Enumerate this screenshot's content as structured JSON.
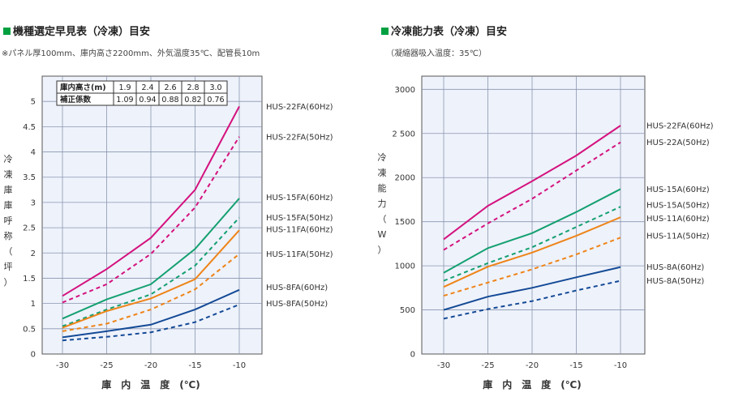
{
  "left": {
    "title": "機種選定早見表（冷凍）目安",
    "subtitle": "※パネル厚100mm、庫内高さ2200mm、外気温度35℃、配管長10m",
    "ylabel_chars": [
      "冷",
      "凍",
      "庫",
      "庫",
      "呼",
      "称",
      "（",
      "坪",
      "）"
    ],
    "xlabel": "庫　内　温　度　(℃)",
    "table": {
      "row1": {
        "head": "庫内高さ(m)",
        "values": [
          "1.9",
          "2.4",
          "2.6",
          "2.8",
          "3.0"
        ]
      },
      "row2": {
        "head": "補正係数",
        "values": [
          "1.09",
          "0.94",
          "0.88",
          "0.82",
          "0.76"
        ]
      }
    },
    "chart_data": {
      "type": "line",
      "x": [
        -30,
        -25,
        -20,
        -15,
        -10
      ],
      "xticks": [
        "-30",
        "-25",
        "-20",
        "-15",
        "-10"
      ],
      "ylim": [
        0,
        5.5
      ],
      "yticks": [
        "0",
        "0.5",
        "1",
        "1.5",
        "2",
        "2.5",
        "3",
        "3.5",
        "4",
        "4.5",
        "5"
      ],
      "grid": true,
      "series": [
        {
          "name": "HUS-22FA(60Hz)",
          "values": [
            1.15,
            1.68,
            2.3,
            3.25,
            4.9
          ],
          "color": "#d4127e",
          "dashed": false
        },
        {
          "name": "HUS-22FA(50Hz)",
          "values": [
            1.02,
            1.38,
            1.98,
            2.9,
            4.3
          ],
          "color": "#d4127e",
          "dashed": true
        },
        {
          "name": "HUS-15FA(60Hz)",
          "values": [
            0.7,
            1.08,
            1.38,
            2.08,
            3.08
          ],
          "color": "#14a070",
          "dashed": false
        },
        {
          "name": "HUS-15FA(50Hz)",
          "values": [
            0.55,
            0.88,
            1.18,
            1.75,
            2.7
          ],
          "color": "#14a070",
          "dashed": true
        },
        {
          "name": "HUS-11FA(60Hz)",
          "values": [
            0.52,
            0.85,
            1.1,
            1.48,
            2.45
          ],
          "color": "#ee8418",
          "dashed": false
        },
        {
          "name": "HUS-11FA(50Hz)",
          "values": [
            0.45,
            0.6,
            0.88,
            1.28,
            1.98
          ],
          "color": "#ee8418",
          "dashed": true
        },
        {
          "name": "HUS-8FA(60Hz)",
          "values": [
            0.33,
            0.45,
            0.58,
            0.88,
            1.27
          ],
          "color": "#144a96",
          "dashed": false
        },
        {
          "name": "HUS-8FA(50Hz)",
          "values": [
            0.27,
            0.34,
            0.43,
            0.63,
            0.98
          ],
          "color": "#144a96",
          "dashed": true
        }
      ],
      "legend": [
        {
          "text": "HUS-22FA(60Hz)",
          "v": 4.9
        },
        {
          "text": "HUS-22FA(50Hz)",
          "v": 4.3
        },
        {
          "text": "HUS-15FA(60Hz)",
          "v": 3.1
        },
        {
          "text": "HUS-15FA(50Hz)",
          "v": 2.7
        },
        {
          "text": "HUS-11FA(60Hz)",
          "v": 2.47
        },
        {
          "text": "HUS-11FA(50Hz)",
          "v": 1.98
        },
        {
          "text": "HUS-8FA(60Hz)",
          "v": 1.32
        },
        {
          "text": "HUS-8FA(50Hz)",
          "v": 1.0
        }
      ]
    }
  },
  "right": {
    "title": "冷凍能力表（冷凍）目安",
    "subtitle": "（凝縮器吸入温度：35℃）",
    "ylabel_chars": [
      "冷",
      "凍",
      "能",
      "力",
      "（",
      "W",
      "）"
    ],
    "xlabel": "庫　内　温　度　(℃)",
    "chart_data": {
      "type": "line",
      "x": [
        -30,
        -25,
        -20,
        -15,
        -10
      ],
      "xticks": [
        "-30",
        "-25",
        "-20",
        "-15",
        "-10"
      ],
      "ylim": [
        0,
        3150
      ],
      "yticks": [
        "0",
        "500",
        "1000",
        "1500",
        "2000",
        "2 500",
        "3000"
      ],
      "yvals": [
        0,
        500,
        1000,
        1500,
        2000,
        2500,
        3000
      ],
      "grid": true,
      "series": [
        {
          "name": "HUS-22FA(60Hz)",
          "values": [
            1300,
            1680,
            1960,
            2250,
            2590
          ],
          "color": "#d4127e",
          "dashed": false
        },
        {
          "name": "HUS-22A(50Hz)",
          "values": [
            1180,
            1480,
            1760,
            2080,
            2400
          ],
          "color": "#d4127e",
          "dashed": true
        },
        {
          "name": "HUS-15A(60Hz)",
          "values": [
            920,
            1200,
            1370,
            1610,
            1870
          ],
          "color": "#14a070",
          "dashed": false
        },
        {
          "name": "HUS-15A(50Hz)",
          "values": [
            830,
            1030,
            1210,
            1440,
            1670
          ],
          "color": "#14a070",
          "dashed": true
        },
        {
          "name": "HUS-11A(60Hz)",
          "values": [
            760,
            990,
            1150,
            1340,
            1550
          ],
          "color": "#ee8418",
          "dashed": false
        },
        {
          "name": "HUS-11A(50Hz)",
          "values": [
            660,
            810,
            960,
            1130,
            1320
          ],
          "color": "#ee8418",
          "dashed": true
        },
        {
          "name": "HUS-8A(60Hz)",
          "values": [
            500,
            650,
            750,
            870,
            985
          ],
          "color": "#144a96",
          "dashed": false
        },
        {
          "name": "HUS-8A(50Hz)",
          "values": [
            400,
            510,
            600,
            720,
            830
          ],
          "color": "#144a96",
          "dashed": true
        }
      ],
      "legend": [
        {
          "text": "HUS-22FA(60Hz)",
          "v": 2590
        },
        {
          "text": "HUS-22A(50Hz)",
          "v": 2400
        },
        {
          "text": "HUS-15A(60Hz)",
          "v": 1870
        },
        {
          "text": "HUS-15A(50Hz)",
          "v": 1690
        },
        {
          "text": "HUS-11A(60Hz)",
          "v": 1540
        },
        {
          "text": "HUS-11A(50Hz)",
          "v": 1340
        },
        {
          "text": "HUS-8A(60Hz)",
          "v": 985
        },
        {
          "text": "HUS-8A(50Hz)",
          "v": 830
        }
      ]
    }
  }
}
